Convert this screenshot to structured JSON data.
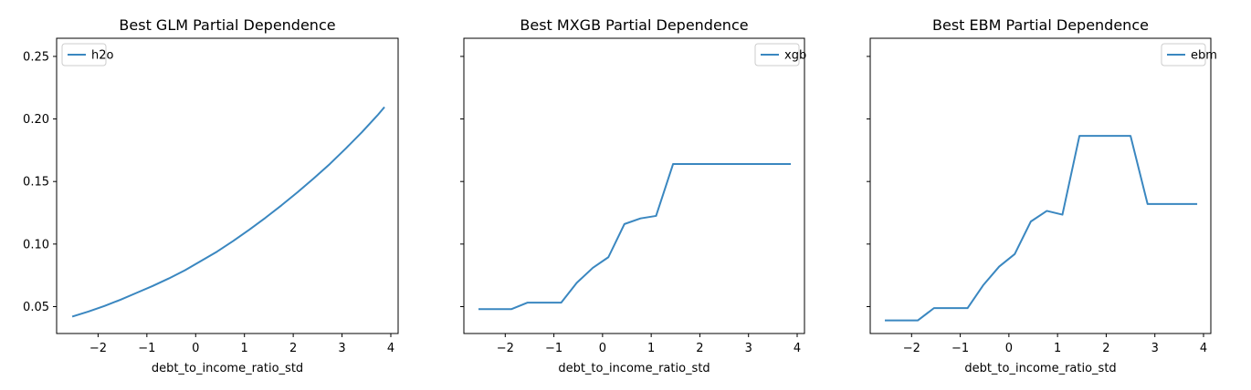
{
  "figure": {
    "line_color": "#3a87c0"
  },
  "chart_data": [
    {
      "type": "line",
      "title": "Best GLM Partial Dependence",
      "xlabel": "debt_to_income_ratio_std",
      "ylabel": "",
      "xlim": [
        -2.85,
        4.15
      ],
      "ylim": [
        0.0285,
        0.2645
      ],
      "xticks": [
        -2,
        -1,
        0,
        1,
        2,
        3,
        4
      ],
      "xtick_labels": [
        "−2",
        "−1",
        "0",
        "1",
        "2",
        "3",
        "4"
      ],
      "yticks": [
        0.05,
        0.1,
        0.15,
        0.2,
        0.25
      ],
      "ytick_labels": [
        "0.05",
        "0.10",
        "0.15",
        "0.20",
        "0.25"
      ],
      "show_yticklabels": true,
      "grid": false,
      "legend_position": "upper left",
      "series": [
        {
          "name": "h2o",
          "x": [
            -2.53,
            -2.2,
            -1.87,
            -1.54,
            -1.21,
            -0.88,
            -0.55,
            -0.22,
            0.11,
            0.44,
            0.77,
            1.1,
            1.43,
            1.76,
            2.09,
            2.42,
            2.75,
            3.08,
            3.41,
            3.74,
            3.87
          ],
          "y": [
            0.042,
            0.046,
            0.0505,
            0.0555,
            0.061,
            0.0665,
            0.0725,
            0.079,
            0.0865,
            0.094,
            0.1025,
            0.1115,
            0.121,
            0.131,
            0.1415,
            0.1525,
            0.164,
            0.1765,
            0.1895,
            0.2035,
            0.2095
          ]
        }
      ]
    },
    {
      "type": "line",
      "title": "Best MXGB Partial Dependence",
      "xlabel": "debt_to_income_ratio_std",
      "ylabel": "",
      "xlim": [
        -2.85,
        4.15
      ],
      "ylim": [
        0.0285,
        0.2645
      ],
      "xticks": [
        -2,
        -1,
        0,
        1,
        2,
        3,
        4
      ],
      "xtick_labels": [
        "−2",
        "−1",
        "0",
        "1",
        "2",
        "3",
        "4"
      ],
      "yticks": [
        0.05,
        0.1,
        0.15,
        0.2,
        0.25
      ],
      "ytick_labels": [
        "0.05",
        "0.10",
        "0.15",
        "0.20",
        "0.25"
      ],
      "show_yticklabels": false,
      "grid": false,
      "legend_position": "upper right",
      "series": [
        {
          "name": "xgb",
          "x": [
            -2.55,
            -1.87,
            -1.54,
            -0.85,
            -0.53,
            -0.2,
            0.12,
            0.45,
            0.78,
            1.1,
            1.45,
            2.5,
            3.87
          ],
          "y": [
            0.048,
            0.048,
            0.0532,
            0.0532,
            0.069,
            0.081,
            0.0895,
            0.116,
            0.1205,
            0.1225,
            0.164,
            0.164,
            0.164
          ]
        }
      ]
    },
    {
      "type": "line",
      "title": "Best EBM Partial Dependence",
      "xlabel": "debt_to_income_ratio_std",
      "ylabel": "",
      "xlim": [
        -2.85,
        4.15
      ],
      "ylim": [
        0.0285,
        0.2645
      ],
      "xticks": [
        -2,
        -1,
        0,
        1,
        2,
        3,
        4
      ],
      "xtick_labels": [
        "−2",
        "−1",
        "0",
        "1",
        "2",
        "3",
        "4"
      ],
      "yticks": [
        0.05,
        0.1,
        0.15,
        0.2,
        0.25
      ],
      "ytick_labels": [
        "0.05",
        "0.10",
        "0.15",
        "0.20",
        "0.25"
      ],
      "show_yticklabels": false,
      "grid": false,
      "legend_position": "upper right",
      "series": [
        {
          "name": "ebm",
          "x": [
            -2.55,
            -1.87,
            -1.54,
            -0.85,
            -0.53,
            -0.2,
            0.12,
            0.45,
            0.78,
            1.1,
            1.45,
            2.5,
            2.85,
            3.87
          ],
          "y": [
            0.039,
            0.039,
            0.0488,
            0.0488,
            0.067,
            0.082,
            0.092,
            0.118,
            0.1265,
            0.1235,
            0.1865,
            0.1865,
            0.132,
            0.132
          ]
        }
      ]
    }
  ]
}
